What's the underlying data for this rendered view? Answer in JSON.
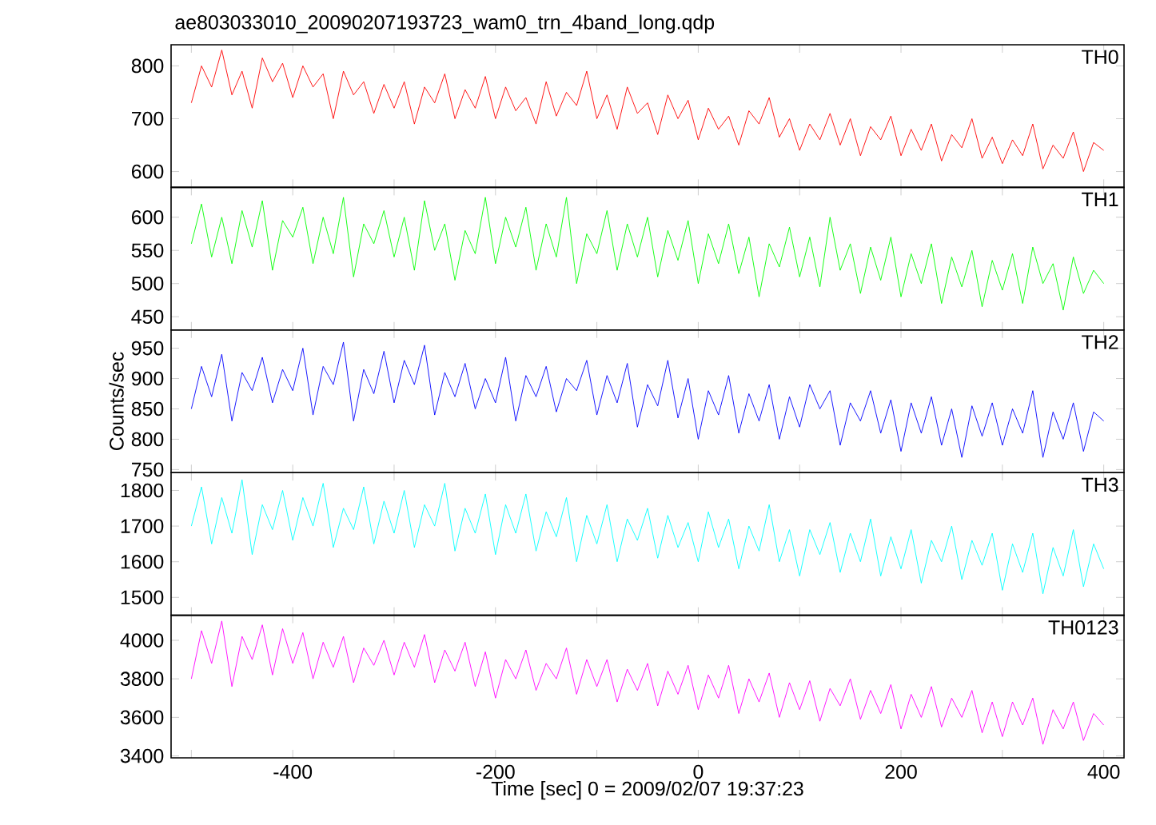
{
  "chart_data": [
    {
      "type": "line",
      "title": "ae803033010_20090207193723_wam0_trn_4band_long.qdp",
      "xlim": [
        -520,
        420
      ],
      "xticks": [
        {
          "value": -500,
          "label": null
        },
        {
          "value": -400,
          "label": null
        },
        {
          "value": -300,
          "label": null
        },
        {
          "value": -200,
          "label": null
        },
        {
          "value": -100,
          "label": null
        },
        {
          "value": 0,
          "label": null
        },
        {
          "value": 100,
          "label": null
        },
        {
          "value": 200,
          "label": null
        },
        {
          "value": 300,
          "label": null
        },
        {
          "value": 400,
          "label": null
        }
      ],
      "ylim": [
        570,
        840
      ],
      "yticks": [
        600,
        700,
        800
      ],
      "tick_labels": "y",
      "x": [
        -500,
        -490,
        -480,
        -470,
        -460,
        -450,
        -440,
        -430,
        -420,
        -410,
        -400,
        -390,
        -380,
        -370,
        -360,
        -350,
        -340,
        -330,
        -320,
        -310,
        -300,
        -290,
        -280,
        -270,
        -260,
        -250,
        -240,
        -230,
        -220,
        -210,
        -200,
        -190,
        -180,
        -170,
        -160,
        -150,
        -140,
        -130,
        -120,
        -110,
        -100,
        -90,
        -80,
        -70,
        -60,
        -50,
        -40,
        -30,
        -20,
        -10,
        0,
        10,
        20,
        30,
        40,
        50,
        60,
        70,
        80,
        90,
        100,
        110,
        120,
        130,
        140,
        150,
        160,
        170,
        180,
        190,
        200,
        210,
        220,
        230,
        240,
        250,
        260,
        270,
        280,
        290,
        300,
        310,
        320,
        330,
        340,
        350,
        360,
        370,
        380,
        390,
        400
      ],
      "series": [
        {
          "name": "TH0",
          "color": "#ff0000",
          "values": [
            730,
            800,
            760,
            830,
            745,
            790,
            720,
            815,
            770,
            805,
            740,
            800,
            760,
            785,
            700,
            790,
            745,
            770,
            710,
            765,
            720,
            770,
            690,
            760,
            730,
            785,
            700,
            755,
            720,
            780,
            700,
            760,
            715,
            740,
            690,
            770,
            705,
            750,
            725,
            790,
            700,
            745,
            680,
            760,
            710,
            730,
            670,
            745,
            700,
            735,
            660,
            720,
            680,
            705,
            650,
            715,
            690,
            740,
            665,
            700,
            640,
            690,
            660,
            710,
            650,
            700,
            630,
            685,
            660,
            705,
            630,
            680,
            640,
            690,
            620,
            670,
            645,
            700,
            625,
            665,
            615,
            660,
            630,
            690,
            605,
            650,
            625,
            675,
            600,
            655,
            640
          ]
        }
      ]
    },
    {
      "type": "line",
      "xlim": [
        -520,
        420
      ],
      "xticks": [
        {
          "value": -500,
          "label": null
        },
        {
          "value": -400,
          "label": null
        },
        {
          "value": -300,
          "label": null
        },
        {
          "value": -200,
          "label": null
        },
        {
          "value": -100,
          "label": null
        },
        {
          "value": 0,
          "label": null
        },
        {
          "value": 100,
          "label": null
        },
        {
          "value": 200,
          "label": null
        },
        {
          "value": 300,
          "label": null
        },
        {
          "value": 400,
          "label": null
        }
      ],
      "ylim": [
        430,
        645
      ],
      "yticks": [
        450,
        500,
        550,
        600
      ],
      "tick_labels": "y",
      "x": [
        -500,
        -490,
        -480,
        -470,
        -460,
        -450,
        -440,
        -430,
        -420,
        -410,
        -400,
        -390,
        -380,
        -370,
        -360,
        -350,
        -340,
        -330,
        -320,
        -310,
        -300,
        -290,
        -280,
        -270,
        -260,
        -250,
        -240,
        -230,
        -220,
        -210,
        -200,
        -190,
        -180,
        -170,
        -160,
        -150,
        -140,
        -130,
        -120,
        -110,
        -100,
        -90,
        -80,
        -70,
        -60,
        -50,
        -40,
        -30,
        -20,
        -10,
        0,
        10,
        20,
        30,
        40,
        50,
        60,
        70,
        80,
        90,
        100,
        110,
        120,
        130,
        140,
        150,
        160,
        170,
        180,
        190,
        200,
        210,
        220,
        230,
        240,
        250,
        260,
        270,
        280,
        290,
        300,
        310,
        320,
        330,
        340,
        350,
        360,
        370,
        380,
        390,
        400
      ],
      "series": [
        {
          "name": "TH1",
          "color": "#00ff00",
          "values": [
            560,
            620,
            540,
            600,
            530,
            610,
            555,
            625,
            520,
            595,
            570,
            615,
            530,
            600,
            545,
            630,
            510,
            590,
            560,
            610,
            540,
            600,
            520,
            625,
            550,
            590,
            505,
            580,
            545,
            630,
            530,
            600,
            555,
            615,
            520,
            590,
            540,
            630,
            500,
            575,
            545,
            610,
            520,
            590,
            540,
            600,
            510,
            580,
            535,
            595,
            500,
            575,
            530,
            590,
            515,
            570,
            480,
            560,
            525,
            585,
            510,
            570,
            495,
            600,
            520,
            560,
            485,
            555,
            505,
            570,
            480,
            545,
            500,
            560,
            470,
            540,
            495,
            550,
            465,
            535,
            490,
            545,
            470,
            555,
            500,
            530,
            460,
            540,
            485,
            520,
            500
          ]
        }
      ]
    },
    {
      "type": "line",
      "ylabel": "Counts/sec",
      "xlim": [
        -520,
        420
      ],
      "xticks": [
        {
          "value": -500,
          "label": null
        },
        {
          "value": -400,
          "label": null
        },
        {
          "value": -300,
          "label": null
        },
        {
          "value": -200,
          "label": null
        },
        {
          "value": -100,
          "label": null
        },
        {
          "value": 0,
          "label": null
        },
        {
          "value": 100,
          "label": null
        },
        {
          "value": 200,
          "label": null
        },
        {
          "value": 300,
          "label": null
        },
        {
          "value": 400,
          "label": null
        }
      ],
      "ylim": [
        745,
        980
      ],
      "yticks": [
        750,
        800,
        850,
        900,
        950
      ],
      "tick_labels": "y",
      "x": [
        -500,
        -490,
        -480,
        -470,
        -460,
        -450,
        -440,
        -430,
        -420,
        -410,
        -400,
        -390,
        -380,
        -370,
        -360,
        -350,
        -340,
        -330,
        -320,
        -310,
        -300,
        -290,
        -280,
        -270,
        -260,
        -250,
        -240,
        -230,
        -220,
        -210,
        -200,
        -190,
        -180,
        -170,
        -160,
        -150,
        -140,
        -130,
        -120,
        -110,
        -100,
        -90,
        -80,
        -70,
        -60,
        -50,
        -40,
        -30,
        -20,
        -10,
        0,
        10,
        20,
        30,
        40,
        50,
        60,
        70,
        80,
        90,
        100,
        110,
        120,
        130,
        140,
        150,
        160,
        170,
        180,
        190,
        200,
        210,
        220,
        230,
        240,
        250,
        260,
        270,
        280,
        290,
        300,
        310,
        320,
        330,
        340,
        350,
        360,
        370,
        380,
        390,
        400
      ],
      "series": [
        {
          "name": "TH2",
          "color": "#0000ff",
          "values": [
            850,
            920,
            870,
            940,
            830,
            910,
            880,
            935,
            860,
            915,
            880,
            950,
            840,
            920,
            890,
            960,
            830,
            915,
            875,
            945,
            860,
            930,
            890,
            955,
            840,
            910,
            870,
            925,
            850,
            900,
            860,
            935,
            830,
            905,
            870,
            920,
            845,
            900,
            880,
            930,
            840,
            905,
            860,
            925,
            820,
            890,
            855,
            930,
            835,
            900,
            800,
            880,
            840,
            905,
            810,
            875,
            830,
            890,
            800,
            870,
            820,
            890,
            850,
            880,
            790,
            860,
            830,
            880,
            810,
            865,
            780,
            860,
            810,
            870,
            790,
            850,
            770,
            855,
            805,
            860,
            790,
            850,
            810,
            880,
            770,
            845,
            800,
            860,
            780,
            845,
            830
          ]
        }
      ]
    },
    {
      "type": "line",
      "xlim": [
        -520,
        420
      ],
      "xticks": [
        {
          "value": -500,
          "label": null
        },
        {
          "value": -400,
          "label": null
        },
        {
          "value": -300,
          "label": null
        },
        {
          "value": -200,
          "label": null
        },
        {
          "value": -100,
          "label": null
        },
        {
          "value": 0,
          "label": null
        },
        {
          "value": 100,
          "label": null
        },
        {
          "value": 200,
          "label": null
        },
        {
          "value": 300,
          "label": null
        },
        {
          "value": 400,
          "label": null
        }
      ],
      "ylim": [
        1450,
        1850
      ],
      "yticks": [
        1500,
        1600,
        1700,
        1800
      ],
      "tick_labels": "y",
      "x": [
        -500,
        -490,
        -480,
        -470,
        -460,
        -450,
        -440,
        -430,
        -420,
        -410,
        -400,
        -390,
        -380,
        -370,
        -360,
        -350,
        -340,
        -330,
        -320,
        -310,
        -300,
        -290,
        -280,
        -270,
        -260,
        -250,
        -240,
        -230,
        -220,
        -210,
        -200,
        -190,
        -180,
        -170,
        -160,
        -150,
        -140,
        -130,
        -120,
        -110,
        -100,
        -90,
        -80,
        -70,
        -60,
        -50,
        -40,
        -30,
        -20,
        -10,
        0,
        10,
        20,
        30,
        40,
        50,
        60,
        70,
        80,
        90,
        100,
        110,
        120,
        130,
        140,
        150,
        160,
        170,
        180,
        190,
        200,
        210,
        220,
        230,
        240,
        250,
        260,
        270,
        280,
        290,
        300,
        310,
        320,
        330,
        340,
        350,
        360,
        370,
        380,
        390,
        400
      ],
      "series": [
        {
          "name": "TH3",
          "color": "#00ffff",
          "values": [
            1700,
            1810,
            1650,
            1780,
            1680,
            1830,
            1620,
            1760,
            1690,
            1800,
            1660,
            1780,
            1700,
            1820,
            1640,
            1750,
            1690,
            1810,
            1650,
            1770,
            1680,
            1800,
            1640,
            1760,
            1700,
            1820,
            1630,
            1750,
            1680,
            1790,
            1620,
            1760,
            1680,
            1790,
            1630,
            1740,
            1670,
            1780,
            1600,
            1730,
            1650,
            1760,
            1600,
            1720,
            1660,
            1750,
            1610,
            1730,
            1640,
            1710,
            1600,
            1740,
            1640,
            1720,
            1580,
            1700,
            1630,
            1760,
            1600,
            1690,
            1560,
            1690,
            1620,
            1710,
            1570,
            1680,
            1600,
            1720,
            1560,
            1670,
            1580,
            1690,
            1540,
            1660,
            1600,
            1700,
            1550,
            1660,
            1590,
            1680,
            1520,
            1650,
            1570,
            1680,
            1510,
            1640,
            1560,
            1690,
            1530,
            1650,
            1580
          ]
        }
      ]
    },
    {
      "type": "line",
      "xlabel": "Time [sec] 0 = 2009/02/07 19:37:23",
      "xlim": [
        -520,
        420
      ],
      "xticks": [
        {
          "value": -500,
          "label": null
        },
        -400,
        {
          "value": -300,
          "label": null
        },
        -200,
        {
          "value": -100,
          "label": null
        },
        0,
        {
          "value": 100,
          "label": null
        },
        200,
        {
          "value": 300,
          "label": null
        },
        400
      ],
      "ylim": [
        3390,
        4130
      ],
      "yticks": [
        3400,
        3600,
        3800,
        4000
      ],
      "x": [
        -500,
        -490,
        -480,
        -470,
        -460,
        -450,
        -440,
        -430,
        -420,
        -410,
        -400,
        -390,
        -380,
        -370,
        -360,
        -350,
        -340,
        -330,
        -320,
        -310,
        -300,
        -290,
        -280,
        -270,
        -260,
        -250,
        -240,
        -230,
        -220,
        -210,
        -200,
        -190,
        -180,
        -170,
        -160,
        -150,
        -140,
        -130,
        -120,
        -110,
        -100,
        -90,
        -80,
        -70,
        -60,
        -50,
        -40,
        -30,
        -20,
        -10,
        0,
        10,
        20,
        30,
        40,
        50,
        60,
        70,
        80,
        90,
        100,
        110,
        120,
        130,
        140,
        150,
        160,
        170,
        180,
        190,
        200,
        210,
        220,
        230,
        240,
        250,
        260,
        270,
        280,
        290,
        300,
        310,
        320,
        330,
        340,
        350,
        360,
        370,
        380,
        390,
        400
      ],
      "series": [
        {
          "name": "TH0123",
          "color": "#ff00ff",
          "values": [
            3800,
            4050,
            3880,
            4100,
            3760,
            4020,
            3900,
            4080,
            3820,
            4060,
            3880,
            4040,
            3800,
            3990,
            3860,
            4020,
            3780,
            3960,
            3870,
            4000,
            3820,
            3990,
            3860,
            4030,
            3780,
            3950,
            3840,
            3990,
            3760,
            3940,
            3700,
            3900,
            3800,
            3950,
            3740,
            3880,
            3800,
            3960,
            3720,
            3900,
            3760,
            3900,
            3680,
            3850,
            3740,
            3880,
            3660,
            3840,
            3720,
            3870,
            3640,
            3820,
            3700,
            3870,
            3620,
            3800,
            3680,
            3830,
            3600,
            3780,
            3640,
            3790,
            3580,
            3750,
            3660,
            3800,
            3590,
            3740,
            3620,
            3770,
            3540,
            3720,
            3600,
            3760,
            3550,
            3700,
            3600,
            3740,
            3520,
            3680,
            3500,
            3680,
            3560,
            3700,
            3460,
            3640,
            3540,
            3680,
            3480,
            3620,
            3560
          ]
        }
      ]
    }
  ]
}
